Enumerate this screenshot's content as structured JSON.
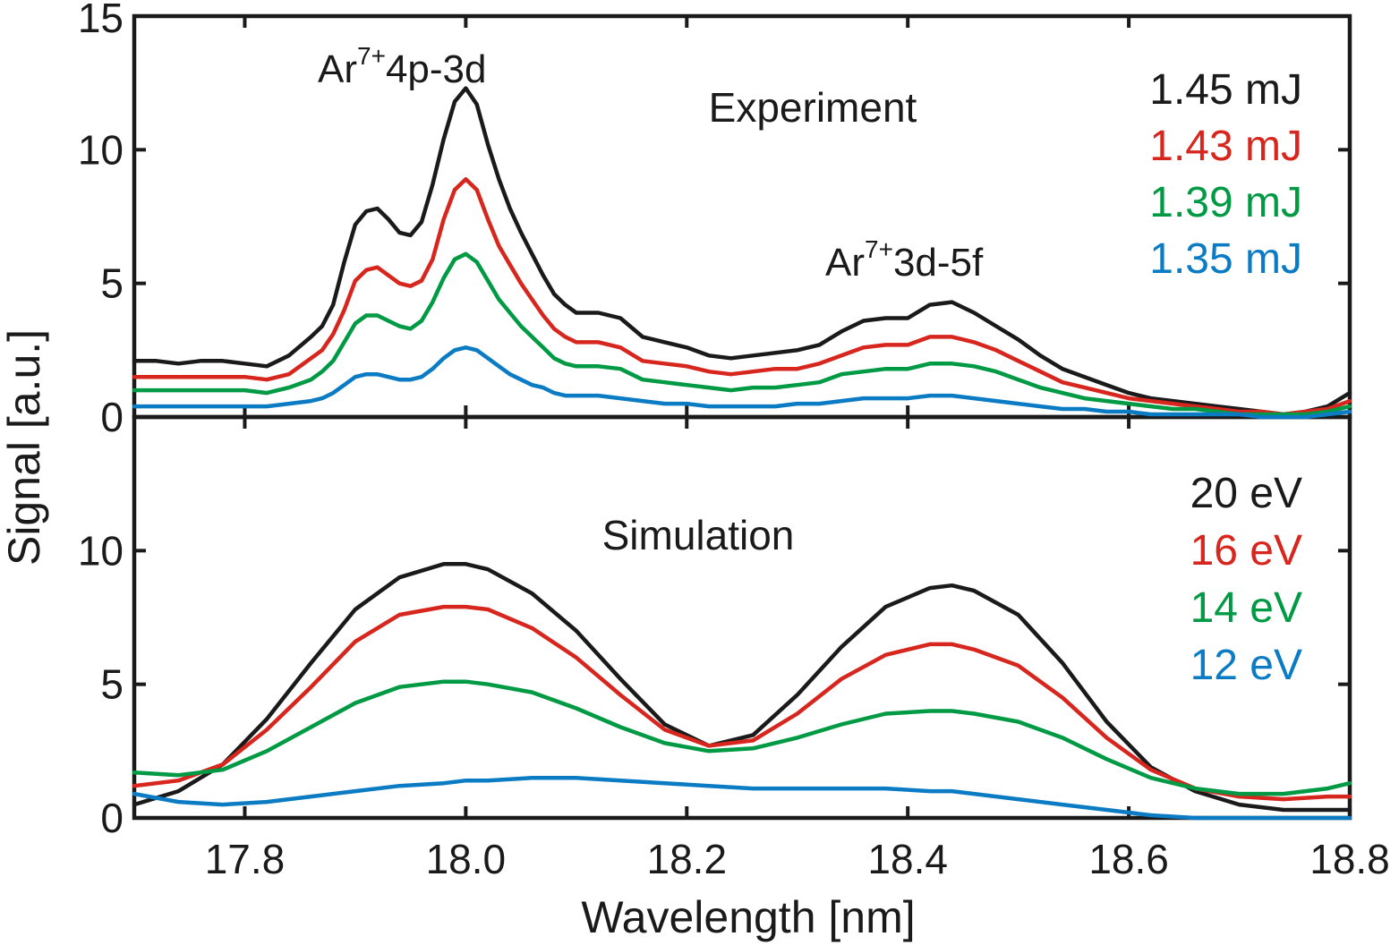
{
  "colors": {
    "black": "#1a1a1a",
    "red": "#d7261e",
    "green": "#009a44",
    "blue": "#0b7cc4"
  },
  "chart_data": [
    {
      "type": "line",
      "panel": "top",
      "title": "Experiment",
      "xlabel": "Wavelength [nm]",
      "ylabel": "Signal [a.u.]",
      "xlim": [
        17.7,
        18.8
      ],
      "ylim": [
        0,
        15
      ],
      "yticks": [
        "0",
        "5",
        "10",
        "15"
      ],
      "xticks": [
        "17.8",
        "18.0",
        "18.2",
        "18.4",
        "18.6",
        "18.8"
      ],
      "legend_position": "top-right",
      "annotations": [
        {
          "base": "Ar",
          "sup": "7+",
          "rest": "4p-3d",
          "x": 18.0,
          "y": 12.4
        },
        {
          "base": "Ar",
          "sup": "7+",
          "rest": "3d-5f",
          "x": 18.43,
          "y": 5.2
        }
      ],
      "x": [
        17.7,
        17.72,
        17.74,
        17.76,
        17.78,
        17.8,
        17.82,
        17.84,
        17.86,
        17.87,
        17.88,
        17.89,
        17.9,
        17.91,
        17.92,
        17.93,
        17.94,
        17.95,
        17.96,
        17.97,
        17.98,
        17.99,
        18.0,
        18.01,
        18.02,
        18.03,
        18.04,
        18.05,
        18.06,
        18.07,
        18.08,
        18.09,
        18.1,
        18.12,
        18.14,
        18.16,
        18.18,
        18.2,
        18.22,
        18.24,
        18.26,
        18.28,
        18.3,
        18.32,
        18.34,
        18.36,
        18.38,
        18.4,
        18.42,
        18.44,
        18.46,
        18.48,
        18.5,
        18.52,
        18.54,
        18.56,
        18.58,
        18.6,
        18.62,
        18.64,
        18.66,
        18.68,
        18.7,
        18.72,
        18.74,
        18.76,
        18.78,
        18.8
      ],
      "series": [
        {
          "name": "1.45 mJ",
          "color": "#1a1a1a",
          "values": [
            2.1,
            2.1,
            2.0,
            2.1,
            2.1,
            2.0,
            1.9,
            2.3,
            3.0,
            3.4,
            4.2,
            5.8,
            7.2,
            7.7,
            7.8,
            7.4,
            6.9,
            6.8,
            7.3,
            8.7,
            10.4,
            11.8,
            12.3,
            11.7,
            10.2,
            8.9,
            7.8,
            6.9,
            6.1,
            5.3,
            4.6,
            4.2,
            3.9,
            3.9,
            3.7,
            3.0,
            2.8,
            2.6,
            2.3,
            2.2,
            2.3,
            2.4,
            2.5,
            2.7,
            3.2,
            3.6,
            3.7,
            3.7,
            4.2,
            4.3,
            3.9,
            3.4,
            2.9,
            2.3,
            1.8,
            1.5,
            1.2,
            0.9,
            0.7,
            0.6,
            0.5,
            0.4,
            0.3,
            0.2,
            0.1,
            0.2,
            0.4,
            0.9
          ]
        },
        {
          "name": "1.43 mJ",
          "color": "#d7261e",
          "values": [
            1.5,
            1.5,
            1.5,
            1.5,
            1.5,
            1.5,
            1.4,
            1.6,
            2.2,
            2.5,
            3.1,
            4.0,
            5.1,
            5.5,
            5.6,
            5.3,
            5.0,
            4.9,
            5.1,
            5.9,
            7.4,
            8.5,
            8.9,
            8.5,
            7.4,
            6.4,
            5.7,
            5.0,
            4.4,
            3.8,
            3.3,
            3.0,
            2.8,
            2.8,
            2.6,
            2.1,
            2.0,
            1.9,
            1.7,
            1.6,
            1.7,
            1.8,
            1.8,
            2.0,
            2.3,
            2.6,
            2.7,
            2.7,
            3.0,
            3.0,
            2.8,
            2.5,
            2.1,
            1.7,
            1.3,
            1.1,
            0.9,
            0.7,
            0.6,
            0.5,
            0.4,
            0.3,
            0.2,
            0.2,
            0.1,
            0.2,
            0.3,
            0.6
          ]
        },
        {
          "name": "1.39 mJ",
          "color": "#009a44",
          "values": [
            1.0,
            1.0,
            1.0,
            1.0,
            1.0,
            1.0,
            0.9,
            1.1,
            1.4,
            1.7,
            2.1,
            2.8,
            3.5,
            3.8,
            3.8,
            3.6,
            3.4,
            3.3,
            3.6,
            4.3,
            5.2,
            5.9,
            6.1,
            5.8,
            5.1,
            4.4,
            3.9,
            3.4,
            3.0,
            2.6,
            2.2,
            2.0,
            1.9,
            1.9,
            1.8,
            1.4,
            1.3,
            1.2,
            1.1,
            1.0,
            1.1,
            1.1,
            1.2,
            1.3,
            1.6,
            1.7,
            1.8,
            1.8,
            2.0,
            2.0,
            1.9,
            1.7,
            1.4,
            1.1,
            0.9,
            0.7,
            0.6,
            0.5,
            0.4,
            0.3,
            0.3,
            0.2,
            0.1,
            0.1,
            0.1,
            0.1,
            0.2,
            0.4
          ]
        },
        {
          "name": "1.35 mJ",
          "color": "#0b7cc4",
          "values": [
            0.4,
            0.4,
            0.4,
            0.4,
            0.4,
            0.4,
            0.4,
            0.5,
            0.6,
            0.7,
            0.9,
            1.2,
            1.5,
            1.6,
            1.6,
            1.5,
            1.4,
            1.4,
            1.5,
            1.8,
            2.2,
            2.5,
            2.6,
            2.5,
            2.2,
            1.9,
            1.6,
            1.4,
            1.2,
            1.1,
            0.9,
            0.8,
            0.8,
            0.8,
            0.7,
            0.6,
            0.5,
            0.5,
            0.4,
            0.4,
            0.4,
            0.4,
            0.5,
            0.5,
            0.6,
            0.7,
            0.7,
            0.7,
            0.8,
            0.8,
            0.7,
            0.6,
            0.5,
            0.4,
            0.3,
            0.3,
            0.2,
            0.2,
            0.1,
            0.1,
            0.1,
            0.1,
            0.1,
            0.0,
            0.0,
            0.0,
            0.1,
            0.2
          ]
        }
      ]
    },
    {
      "type": "line",
      "panel": "bottom",
      "title": "Simulation",
      "xlabel": "Wavelength [nm]",
      "ylabel": "Signal [a.u.]",
      "xlim": [
        17.7,
        18.8
      ],
      "ylim": [
        0,
        15
      ],
      "yticks": [
        "0",
        "5",
        "10"
      ],
      "xticks": [
        "17.8",
        "18.0",
        "18.2",
        "18.4",
        "18.6",
        "18.8"
      ],
      "legend_position": "top-right",
      "x": [
        17.7,
        17.74,
        17.78,
        17.82,
        17.86,
        17.9,
        17.94,
        17.98,
        18.0,
        18.02,
        18.06,
        18.1,
        18.14,
        18.18,
        18.22,
        18.26,
        18.3,
        18.34,
        18.38,
        18.42,
        18.44,
        18.46,
        18.5,
        18.54,
        18.58,
        18.62,
        18.66,
        18.7,
        18.74,
        18.78,
        18.8
      ],
      "series": [
        {
          "name": "20 eV",
          "color": "#1a1a1a",
          "values": [
            0.5,
            1.0,
            2.0,
            3.7,
            5.8,
            7.8,
            9.0,
            9.5,
            9.5,
            9.3,
            8.4,
            7.0,
            5.2,
            3.5,
            2.7,
            3.1,
            4.6,
            6.4,
            7.9,
            8.6,
            8.7,
            8.5,
            7.6,
            5.8,
            3.6,
            1.9,
            1.0,
            0.5,
            0.3,
            0.3,
            0.3
          ]
        },
        {
          "name": "16 eV",
          "color": "#d7261e",
          "values": [
            1.2,
            1.4,
            2.0,
            3.3,
            4.9,
            6.6,
            7.6,
            7.9,
            7.9,
            7.8,
            7.1,
            6.0,
            4.6,
            3.3,
            2.7,
            2.9,
            3.9,
            5.2,
            6.1,
            6.5,
            6.5,
            6.3,
            5.7,
            4.5,
            3.0,
            1.8,
            1.1,
            0.8,
            0.7,
            0.8,
            0.8
          ]
        },
        {
          "name": "14 eV",
          "color": "#009a44",
          "values": [
            1.7,
            1.6,
            1.8,
            2.5,
            3.4,
            4.3,
            4.9,
            5.1,
            5.1,
            5.0,
            4.7,
            4.1,
            3.4,
            2.8,
            2.5,
            2.6,
            3.0,
            3.5,
            3.9,
            4.0,
            4.0,
            3.9,
            3.6,
            3.0,
            2.2,
            1.5,
            1.1,
            0.9,
            0.9,
            1.1,
            1.3
          ]
        },
        {
          "name": "12 eV",
          "color": "#0b7cc4",
          "values": [
            0.9,
            0.6,
            0.5,
            0.6,
            0.8,
            1.0,
            1.2,
            1.3,
            1.4,
            1.4,
            1.5,
            1.5,
            1.4,
            1.3,
            1.2,
            1.1,
            1.1,
            1.1,
            1.1,
            1.0,
            1.0,
            0.9,
            0.7,
            0.5,
            0.3,
            0.1,
            0.0,
            0.0,
            0.0,
            0.0,
            0.0
          ]
        }
      ]
    }
  ]
}
